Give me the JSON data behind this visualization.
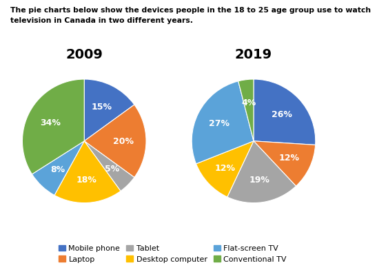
{
  "title_line1": "The pie charts below show the devices people in the 18 to 25 age group use to watch",
  "title_line2": "television in Canada in two different years.",
  "year1": "2009",
  "year2": "2019",
  "categories": [
    "Mobile phone",
    "Laptop",
    "Tablet",
    "Desktop computer",
    "Flat-screen TV",
    "Conventional TV"
  ],
  "colors": [
    "#4472C4",
    "#ED7D31",
    "#A5A5A5",
    "#FFC000",
    "#5BA3D9",
    "#70AD47"
  ],
  "values_2009": [
    15,
    20,
    5,
    18,
    8,
    34
  ],
  "values_2019": [
    26,
    12,
    19,
    12,
    27,
    4
  ],
  "labels_2009": [
    "15%",
    "20%",
    "5%",
    "18%",
    "8%",
    "34%"
  ],
  "labels_2019": [
    "26%",
    "12%",
    "19%",
    "12%",
    "27%",
    "4%"
  ],
  "startangle_2009": 90,
  "startangle_2019": 90,
  "background_color": "#FFFFFF",
  "text_color": "#000000",
  "title_fontsize": 7.8,
  "year_fontsize": 14,
  "pct_fontsize": 9
}
